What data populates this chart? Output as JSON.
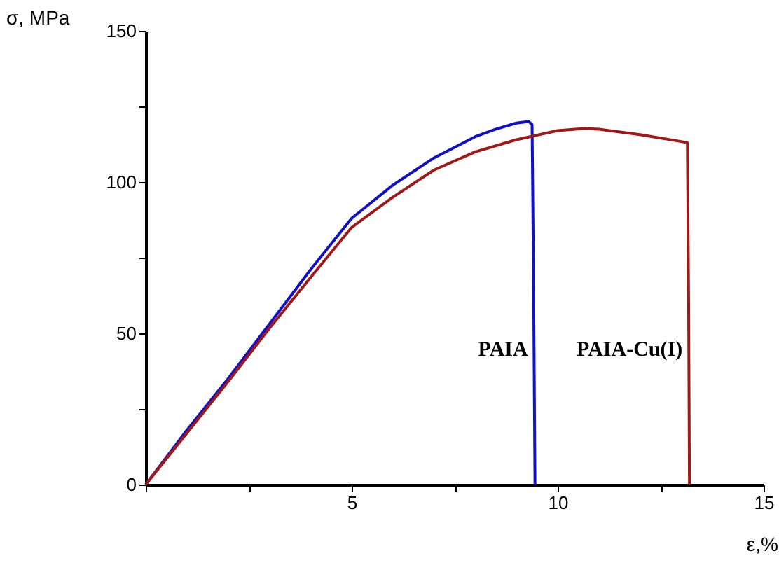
{
  "chart_data": {
    "type": "line",
    "xlabel": "ε,%",
    "ylabel": "σ, MPa",
    "xlim": [
      0,
      15
    ],
    "xticks": [
      {
        "value": 0,
        "label": null
      },
      {
        "value": 2.5,
        "label": null
      },
      5,
      {
        "value": 7.5,
        "label": null
      },
      10,
      {
        "value": 12.5,
        "label": null
      },
      15
    ],
    "ylim": [
      0,
      150
    ],
    "yticks": [
      0,
      {
        "value": 25,
        "label": null
      },
      50,
      {
        "value": 75,
        "label": null
      },
      100,
      {
        "value": 125,
        "label": null
      },
      150
    ],
    "grid": false,
    "legend": false,
    "marker": "none",
    "line_style": "solid",
    "series": [
      {
        "name": "PAIA",
        "color": "#1010c8",
        "x": [
          0,
          1,
          2,
          3,
          4,
          5,
          6,
          7,
          8,
          8.5,
          9,
          9.3,
          9.38,
          9.42,
          9.45
        ],
        "values": [
          0,
          18,
          35,
          53,
          71,
          88,
          99,
          108,
          115,
          117.5,
          119.5,
          120,
          119,
          60,
          0
        ]
      },
      {
        "name": "PAIA-Cu(I)",
        "color": "#a01818",
        "x": [
          0,
          1,
          2,
          3,
          4,
          5,
          6,
          7,
          8,
          9,
          10,
          10.65,
          11,
          12,
          13,
          13.15,
          13.18,
          13.2
        ],
        "values": [
          0,
          17,
          34,
          51.6,
          68.4,
          85,
          95,
          104,
          110,
          114,
          117,
          117.7,
          117.5,
          115.7,
          113.4,
          113,
          60,
          0
        ]
      }
    ]
  }
}
